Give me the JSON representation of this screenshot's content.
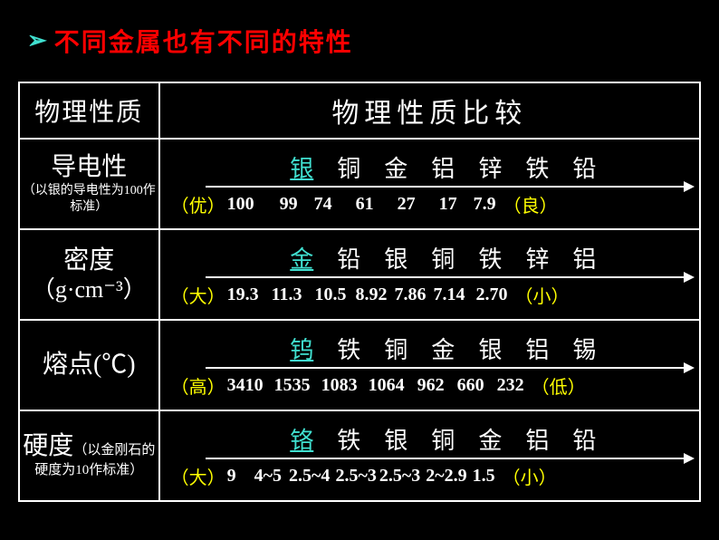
{
  "title": "不同金属也有不同的特性",
  "colHeaderLeft": "物理性质",
  "colHeaderRight": "物理性质比较",
  "rows": [
    {
      "name": "导电性",
      "sub": "（以银的导电性为100作标准）",
      "metals": [
        "银",
        "铜",
        "金",
        "铝",
        "锌",
        "铁",
        "铅"
      ],
      "values": [
        "100",
        "99",
        "74",
        "61",
        "27",
        "17",
        "7.9"
      ],
      "leftQual": "（优）",
      "rightQual": "（良）",
      "valGaps": [
        28,
        18,
        26,
        26,
        26,
        18
      ]
    },
    {
      "name": "密度",
      "sub": "（g·cm⁻³）",
      "subBig": true,
      "metals": [
        "金",
        "铅",
        "银",
        "铜",
        "铁",
        "锌",
        "铝"
      ],
      "values": [
        "19.3",
        "11.3",
        "10.5",
        "8.92",
        "7.86",
        "7.14",
        "2.70"
      ],
      "leftQual": "（大）",
      "rightQual": "（小）",
      "valGaps": [
        14,
        14,
        10,
        8,
        8,
        12
      ]
    },
    {
      "name": "熔点(℃)",
      "sub": "",
      "metals": [
        "钨",
        "铁",
        "铜",
        "金",
        "银",
        "铝",
        "锡"
      ],
      "values": [
        "3410",
        "1535",
        "1083",
        "1064",
        "962",
        "660",
        "232"
      ],
      "leftQual": "（高）",
      "rightQual": "（低）",
      "valGaps": [
        12,
        12,
        12,
        14,
        14,
        14
      ]
    },
    {
      "name": "硬度",
      "sub": "（以金刚石的硬度为10作标准）",
      "inlineSub": true,
      "metals": [
        "铬",
        "铁",
        "银",
        "铜",
        "金",
        "铝",
        "铅"
      ],
      "values": [
        "9",
        "4~5",
        "2.5~4",
        "2.5~3",
        "2.5~3",
        "2~2.9",
        "1.5"
      ],
      "leftQual": "（大）",
      "rightQual": "（小）",
      "valGaps": [
        20,
        8,
        6,
        3,
        6,
        6
      ]
    }
  ],
  "colors": {
    "background": "#000000",
    "title": "#ff0000",
    "bulletArrow": "#40e0d0",
    "firstMetal": "#40e0d0",
    "qualifier": "#ffff00",
    "text": "#ffffff",
    "border": "#ffffff"
  },
  "fonts": {
    "title": 28,
    "propName": 28,
    "propSub": 14,
    "headerCell": 30,
    "metals": 26,
    "values": 20,
    "qualifier": 20
  }
}
